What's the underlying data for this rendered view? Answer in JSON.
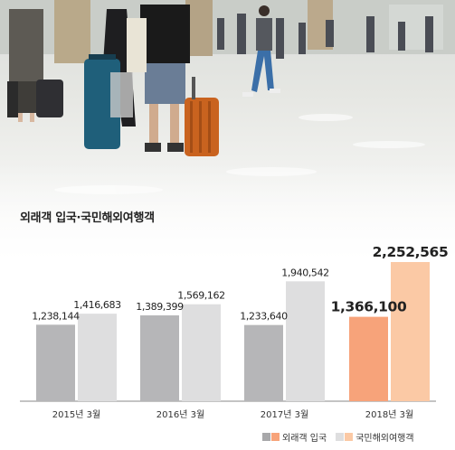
{
  "chart_data": {
    "type": "bar",
    "title": "외래객 입국·국민해외여행객",
    "categories": [
      "2015년 3월",
      "2016년 3월",
      "2017년 3월",
      "2018년 3월"
    ],
    "series": [
      {
        "name": "외래객 입국",
        "values": [
          1238144,
          1389399,
          1233640,
          1366100
        ],
        "labels": [
          "1,238,144",
          "1,389,399",
          "1,233,640",
          "1,366,100"
        ]
      },
      {
        "name": "국민해외여행객",
        "values": [
          1416683,
          1569162,
          1940542,
          2252565
        ],
        "labels": [
          "1,416,683",
          "1,569,162",
          "1,940,542",
          "2,252,565"
        ]
      }
    ],
    "ylim": [
      0,
      2600000
    ],
    "grid": false,
    "legend_position": "bottom-right"
  },
  "colors": {
    "foreign_gray": "#b6b6b8",
    "outbound_lightgray": "#dededf",
    "foreign_highlight": "#f7a37a",
    "outbound_highlight": "#fbc9a5",
    "legend_gray": "#a8a8aa"
  }
}
